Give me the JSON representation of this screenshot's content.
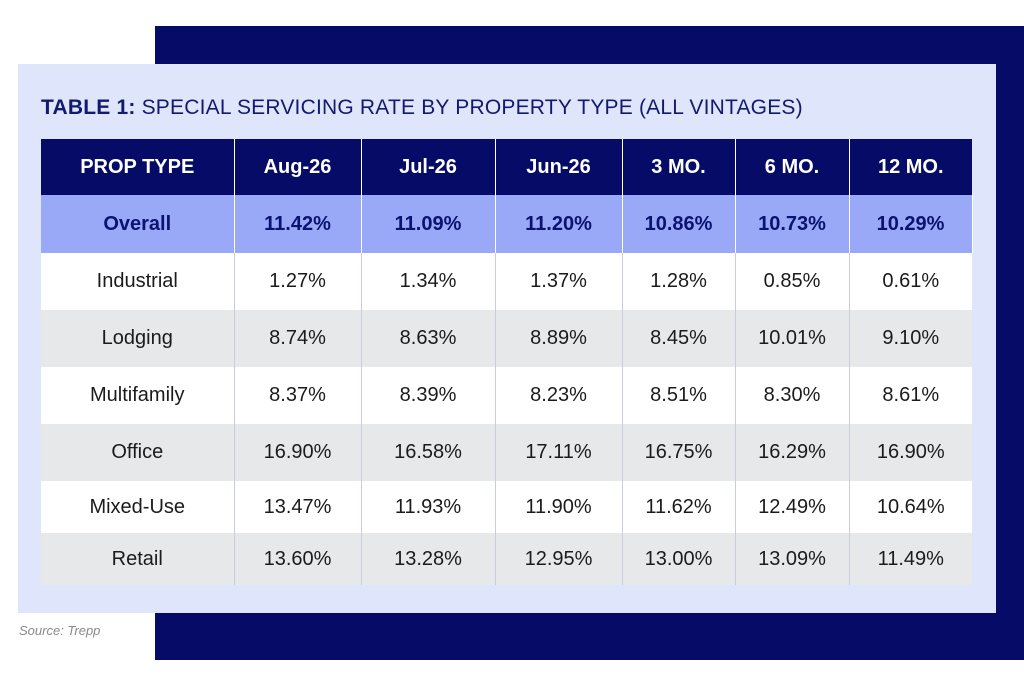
{
  "title": {
    "bold": "TABLE 1:",
    "rest": "SPECIAL SERVICING RATE BY PROPERTY TYPE (ALL VINTAGES)"
  },
  "source": "Source: Trepp",
  "colors": {
    "navy": "#050b66",
    "card": "#dfe6fb",
    "overall_row": "#9aa9f7",
    "stripe": "#e6e8ea"
  },
  "chart_data": {
    "type": "table",
    "title": "TABLE 1: SPECIAL SERVICING RATE BY PROPERTY TYPE (ALL VINTAGES)",
    "columns": [
      "PROP TYPE",
      "Aug-26",
      "Jul-26",
      "Jun-26",
      "3 MO.",
      "6 MO.",
      "12 MO."
    ],
    "rows": [
      [
        "Overall",
        "11.42%",
        "11.09%",
        "11.20%",
        "10.86%",
        "10.73%",
        "10.29%"
      ],
      [
        "Industrial",
        "1.27%",
        "1.34%",
        "1.37%",
        "1.28%",
        "0.85%",
        "0.61%"
      ],
      [
        "Lodging",
        "8.74%",
        "8.63%",
        "8.89%",
        "8.45%",
        "10.01%",
        "9.10%"
      ],
      [
        "Multifamily",
        "8.37%",
        "8.39%",
        "8.23%",
        "8.51%",
        "8.30%",
        "8.61%"
      ],
      [
        "Office",
        "16.90%",
        "16.58%",
        "17.11%",
        "16.75%",
        "16.29%",
        "16.90%"
      ],
      [
        "Mixed-Use",
        "13.47%",
        "11.93%",
        "11.90%",
        "11.62%",
        "12.49%",
        "10.64%"
      ],
      [
        "Retail",
        "13.60%",
        "13.28%",
        "12.95%",
        "13.00%",
        "13.09%",
        "11.49%"
      ]
    ]
  }
}
